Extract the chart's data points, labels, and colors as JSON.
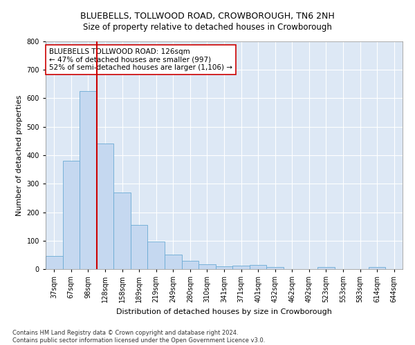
{
  "title": "BLUEBELLS, TOLLWOOD ROAD, CROWBOROUGH, TN6 2NH",
  "subtitle": "Size of property relative to detached houses in Crowborough",
  "xlabel": "Distribution of detached houses by size in Crowborough",
  "ylabel": "Number of detached properties",
  "categories": [
    "37sqm",
    "67sqm",
    "98sqm",
    "128sqm",
    "158sqm",
    "189sqm",
    "219sqm",
    "249sqm",
    "280sqm",
    "310sqm",
    "341sqm",
    "371sqm",
    "401sqm",
    "432sqm",
    "462sqm",
    "492sqm",
    "523sqm",
    "553sqm",
    "583sqm",
    "614sqm",
    "644sqm"
  ],
  "values": [
    45,
    380,
    625,
    440,
    270,
    155,
    96,
    52,
    28,
    17,
    10,
    12,
    15,
    8,
    0,
    0,
    7,
    0,
    0,
    7,
    0
  ],
  "bar_color": "#c5d8f0",
  "bar_edge_color": "#6aaad4",
  "vline_color": "#cc0000",
  "vline_index": 2.5,
  "annotation_text": "BLUEBELLS TOLLWOOD ROAD: 126sqm\n← 47% of detached houses are smaller (997)\n52% of semi-detached houses are larger (1,106) →",
  "annotation_box_facecolor": "#ffffff",
  "annotation_box_edgecolor": "#cc0000",
  "ylim": [
    0,
    800
  ],
  "yticks": [
    0,
    100,
    200,
    300,
    400,
    500,
    600,
    700,
    800
  ],
  "footnote": "Contains HM Land Registry data © Crown copyright and database right 2024.\nContains public sector information licensed under the Open Government Licence v3.0.",
  "bg_color": "#ffffff",
  "plot_bg_color": "#dde8f5",
  "title_fontsize": 9,
  "subtitle_fontsize": 8.5,
  "axis_label_fontsize": 8,
  "tick_fontsize": 7,
  "annotation_fontsize": 7.5,
  "footnote_fontsize": 6
}
